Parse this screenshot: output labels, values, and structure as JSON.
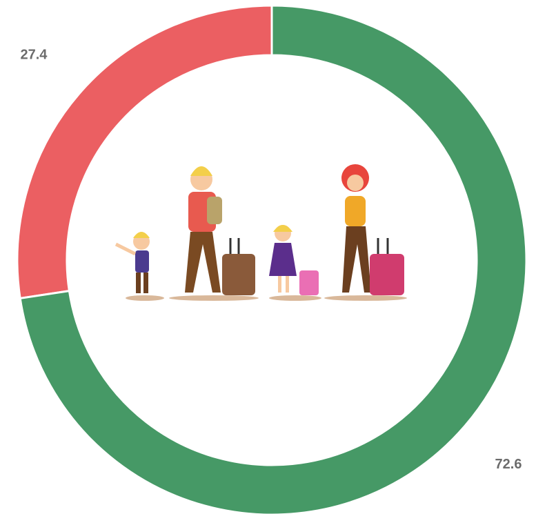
{
  "chart_data": {
    "type": "donut",
    "values": [
      72.6,
      27.4
    ],
    "colors": [
      "#469966",
      "#eb5f62"
    ]
  }
}
